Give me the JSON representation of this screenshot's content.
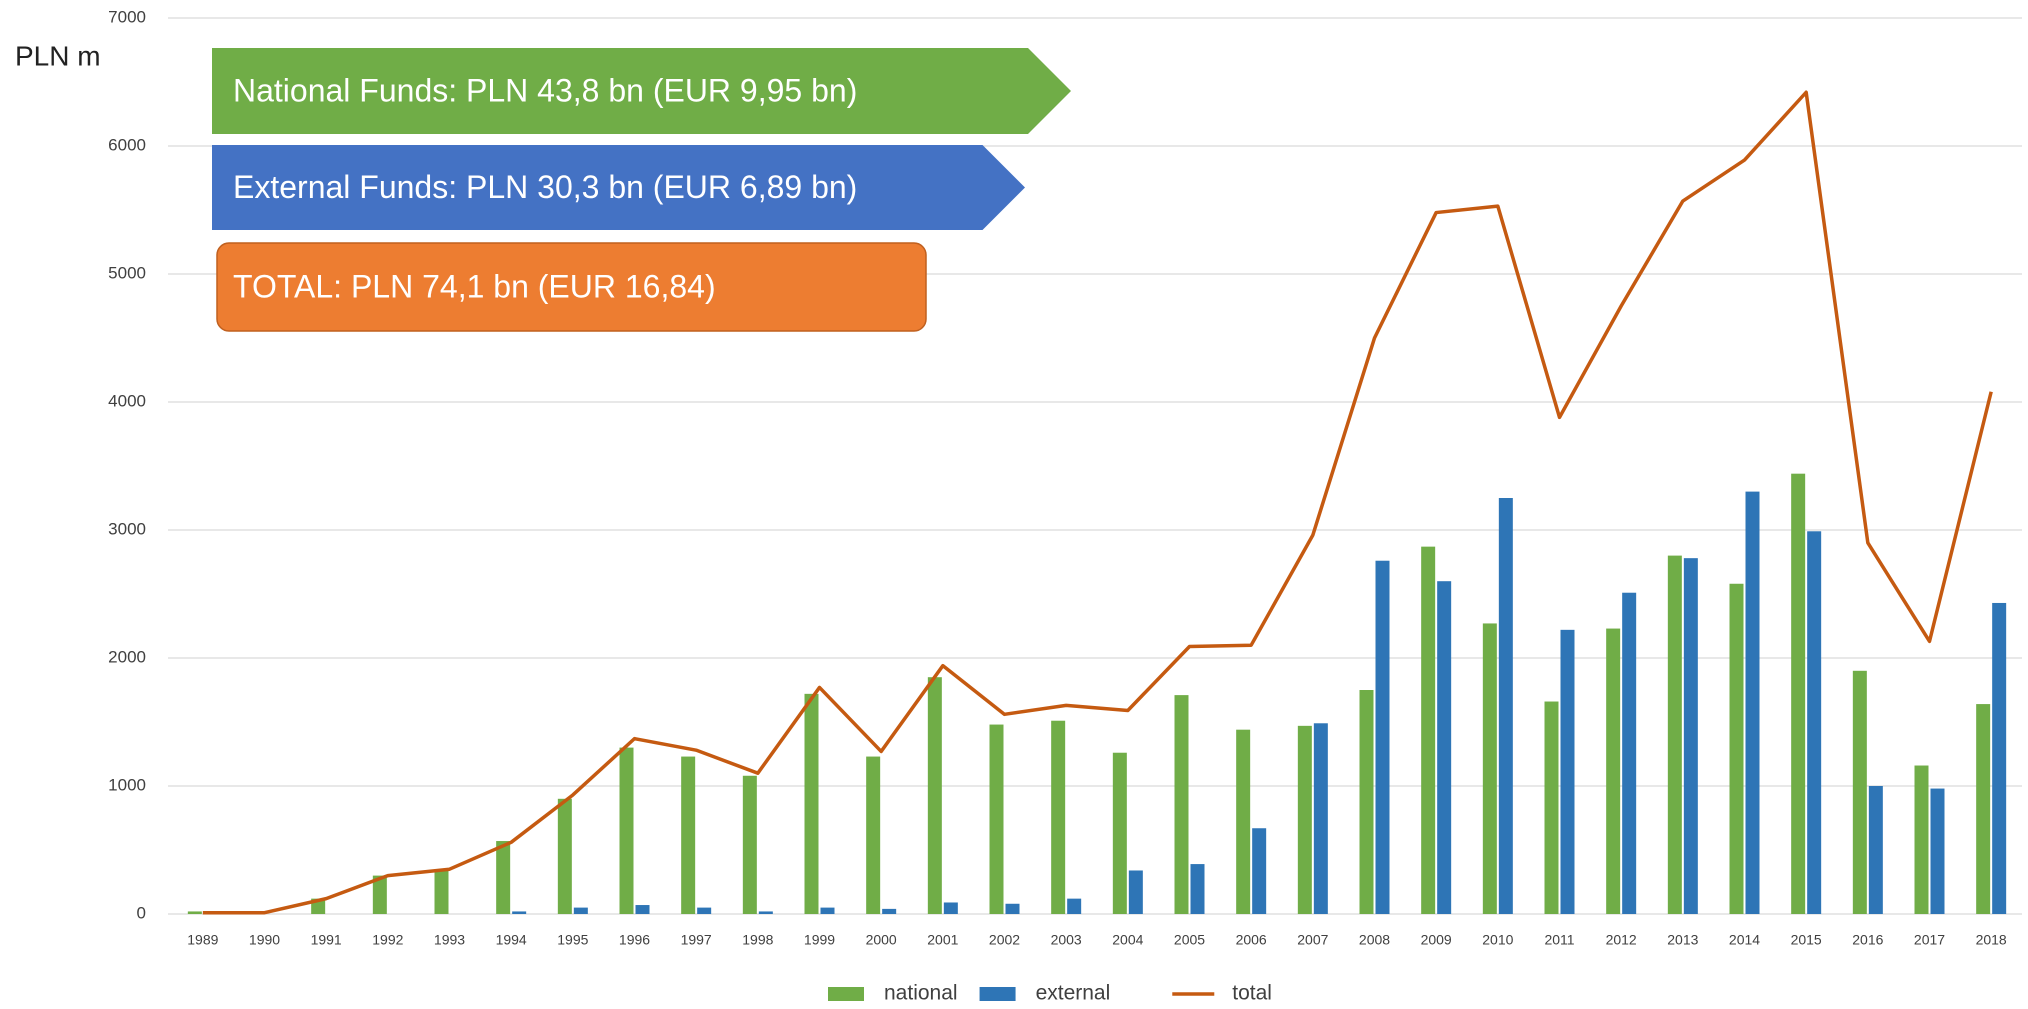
{
  "chart_data": {
    "type": "bar-line",
    "y_label": "PLN m",
    "categories": [
      "1989",
      "1990",
      "1991",
      "1992",
      "1993",
      "1994",
      "1995",
      "1996",
      "1997",
      "1998",
      "1999",
      "2000",
      "2001",
      "2002",
      "2003",
      "2004",
      "2005",
      "2006",
      "2007",
      "2008",
      "2009",
      "2010",
      "2011",
      "2012",
      "2013",
      "2014",
      "2015",
      "2016",
      "2017",
      "2018"
    ],
    "series": [
      {
        "name": "national",
        "type": "bar",
        "color": "#70ad47",
        "values": [
          20,
          5,
          120,
          300,
          350,
          570,
          900,
          1300,
          1230,
          1080,
          1720,
          1230,
          1850,
          1480,
          1510,
          1260,
          1710,
          1440,
          1470,
          1750,
          2870,
          2270,
          1660,
          2230,
          2800,
          2580,
          3440,
          1900,
          1160,
          1640
        ]
      },
      {
        "name": "external",
        "type": "bar",
        "color": "#2e75b6",
        "values": [
          0,
          0,
          0,
          0,
          0,
          20,
          50,
          70,
          50,
          20,
          50,
          40,
          90,
          80,
          120,
          340,
          390,
          670,
          1490,
          2760,
          2600,
          3250,
          2220,
          2510,
          2780,
          3300,
          2990,
          1000,
          980,
          2430
        ]
      },
      {
        "name": "total",
        "type": "line",
        "color": "#c55a11",
        "values": [
          10,
          10,
          120,
          300,
          350,
          560,
          930,
          1370,
          1280,
          1100,
          1770,
          1270,
          1940,
          1560,
          1630,
          1590,
          2090,
          2100,
          2960,
          4500,
          5480,
          5530,
          3880,
          4750,
          5570,
          5890,
          6420,
          2900,
          2130,
          4080
        ]
      }
    ],
    "annotations": [
      {
        "text": "National Funds: PLN 43,8 bn (EUR 9,95 bn)",
        "color": "#70ad47"
      },
      {
        "text": "External Funds: PLN 30,3 bn (EUR 6,89 bn)",
        "color": "#4472c4"
      },
      {
        "text": "TOTAL: PLN 74,1 bn (EUR 16,84)",
        "color": "#ed7d31"
      }
    ],
    "ylim": [
      0,
      7000
    ],
    "yticks": [
      0,
      1000,
      2000,
      3000,
      4000,
      5000,
      6000,
      7000
    ],
    "grid": true,
    "legend": "bottom"
  }
}
